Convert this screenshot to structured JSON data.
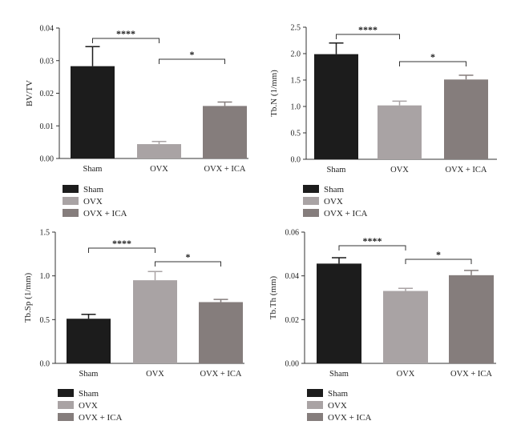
{
  "colors": {
    "Sham": "#1c1c1c",
    "OVX": "#a9a3a4",
    "OVX + ICA": "#857d7c",
    "axis": "#333333"
  },
  "chart_data": [
    {
      "type": "bar",
      "categories": [
        "Sham",
        "OVX",
        "OVX + ICA"
      ],
      "values": [
        0.0283,
        0.0044,
        0.0161
      ],
      "errors": [
        0.006,
        0.0008,
        0.0012
      ],
      "ylabel": "BV/TV",
      "ylim": [
        0,
        0.04
      ],
      "yticks": [
        "0.00",
        "0.01",
        "0.02",
        "0.03",
        "0.04"
      ],
      "significance": [
        {
          "from": 0,
          "to": 1,
          "label": "****"
        },
        {
          "from": 1,
          "to": 2,
          "label": "*"
        }
      ],
      "legend": [
        "Sham",
        "OVX",
        "OVX + ICA"
      ],
      "legend_position": "bottom-left"
    },
    {
      "type": "bar",
      "categories": [
        "Sham",
        "OVX",
        "OVX + ICA"
      ],
      "values": [
        1.99,
        1.02,
        1.51
      ],
      "errors": [
        0.21,
        0.08,
        0.08
      ],
      "ylabel": "Tb.N (1/mm)",
      "ylim": [
        0,
        2.5
      ],
      "yticks": [
        "0.0",
        "0.5",
        "1.0",
        "1.5",
        "2.0",
        "2.5"
      ],
      "significance": [
        {
          "from": 0,
          "to": 1,
          "label": "****"
        },
        {
          "from": 1,
          "to": 2,
          "label": "*"
        }
      ],
      "legend": [
        "Sham",
        "OVX",
        "OVX + ICA"
      ],
      "legend_position": "bottom-left"
    },
    {
      "type": "bar",
      "categories": [
        "Sham",
        "OVX",
        "OVX + ICA"
      ],
      "values": [
        0.51,
        0.95,
        0.7
      ],
      "errors": [
        0.05,
        0.1,
        0.03
      ],
      "ylabel": "Tb.Sp (1/mm)",
      "ylim": [
        0,
        1.5
      ],
      "yticks": [
        "0.0",
        "0.5",
        "1.0",
        "1.5"
      ],
      "significance": [
        {
          "from": 0,
          "to": 1,
          "label": "****"
        },
        {
          "from": 1,
          "to": 2,
          "label": "*"
        }
      ],
      "legend": [
        "Sham",
        "OVX",
        "OVX + ICA"
      ],
      "legend_position": "bottom-left"
    },
    {
      "type": "bar",
      "categories": [
        "Sham",
        "OVX",
        "OVX + ICA"
      ],
      "values": [
        0.0456,
        0.0331,
        0.0403
      ],
      "errors": [
        0.0027,
        0.0012,
        0.0022
      ],
      "ylabel": "Tb.Th (mm)",
      "ylim": [
        0,
        0.06
      ],
      "yticks": [
        "0.00",
        "0.02",
        "0.04",
        "0.06"
      ],
      "significance": [
        {
          "from": 0,
          "to": 1,
          "label": "****"
        },
        {
          "from": 1,
          "to": 2,
          "label": "*"
        }
      ],
      "legend": [
        "Sham",
        "OVX",
        "OVX + ICA"
      ],
      "legend_position": "bottom-left"
    }
  ]
}
